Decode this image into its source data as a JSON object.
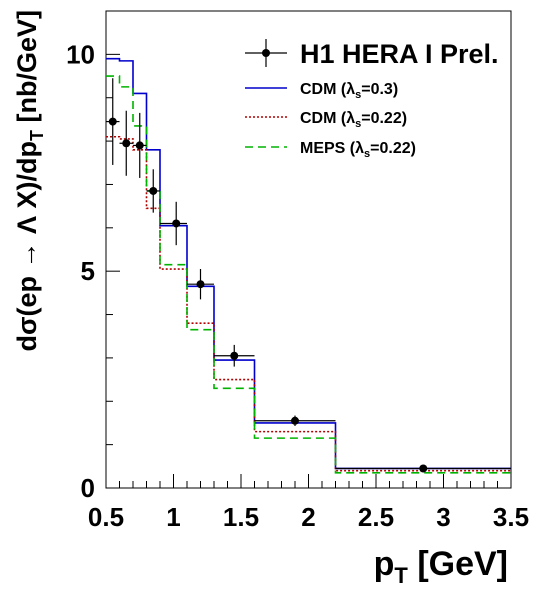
{
  "chart_data": {
    "type": "line",
    "xlabel": "p",
    "xlabel_sub": "T",
    "xlabel_unit": " [GeV]",
    "ylabel": "dσ(ep → Λ X)/dp",
    "ylabel_sub": "T",
    "ylabel_unit": " [nb/GeV]",
    "xlim": [
      0.5,
      3.5
    ],
    "ylim": [
      0,
      11
    ],
    "x_ticks": [
      "0.5",
      "1",
      "1.5",
      "2",
      "2.5",
      "3",
      "3.5"
    ],
    "x_tick_values": [
      0.5,
      1.0,
      1.5,
      2.0,
      2.5,
      3.0,
      3.5
    ],
    "y_ticks": [
      "0",
      "5",
      "10"
    ],
    "y_tick_values": [
      0,
      5,
      10
    ],
    "legend_position": "top-right",
    "bin_edges": [
      0.5,
      0.6,
      0.7,
      0.8,
      0.9,
      1.1,
      1.3,
      1.6,
      2.2,
      3.5
    ],
    "series": [
      {
        "name": "H1 HERA I Prel.",
        "kind": "points",
        "color": "#000000",
        "x": [
          0.55,
          0.65,
          0.75,
          0.85,
          1.02,
          1.2,
          1.45,
          1.9,
          2.85
        ],
        "y": [
          8.45,
          7.95,
          7.9,
          6.85,
          6.1,
          4.7,
          3.05,
          1.55,
          0.45
        ],
        "yerr": [
          1.0,
          0.75,
          0.75,
          0.5,
          0.5,
          0.35,
          0.25,
          0.12,
          0.05
        ],
        "xerr_low": [
          0.05,
          0.05,
          0.05,
          0.05,
          0.12,
          0.1,
          0.15,
          0.3,
          0.65
        ],
        "xerr_high": [
          0.05,
          0.05,
          0.05,
          0.05,
          0.08,
          0.1,
          0.15,
          0.3,
          0.65
        ]
      },
      {
        "name": "CDM (λs=0.3)",
        "label_main": "CDM (λ",
        "label_sub": "s",
        "label_end": "=0.3)",
        "kind": "histogram",
        "color": "#0000cc",
        "dash": "",
        "values": [
          9.9,
          9.85,
          9.1,
          7.8,
          6.05,
          4.65,
          2.95,
          1.5,
          0.45
        ]
      },
      {
        "name": "CDM (λs=0.22)",
        "label_main": "CDM (λ",
        "label_sub": "s",
        "label_end": "=0.22)",
        "kind": "histogram",
        "color": "#b30000",
        "dash": "2,2",
        "values": [
          8.1,
          8.05,
          7.8,
          6.45,
          5.05,
          3.8,
          2.5,
          1.3,
          0.4
        ]
      },
      {
        "name": "MEPS (λs=0.22)",
        "label_main": "MEPS (λ",
        "label_sub": "s",
        "label_end": "=0.22)",
        "kind": "histogram",
        "color": "#00b300",
        "dash": "8,5",
        "values": [
          9.5,
          9.25,
          8.35,
          6.85,
          5.15,
          3.65,
          2.3,
          1.15,
          0.35
        ]
      }
    ]
  }
}
